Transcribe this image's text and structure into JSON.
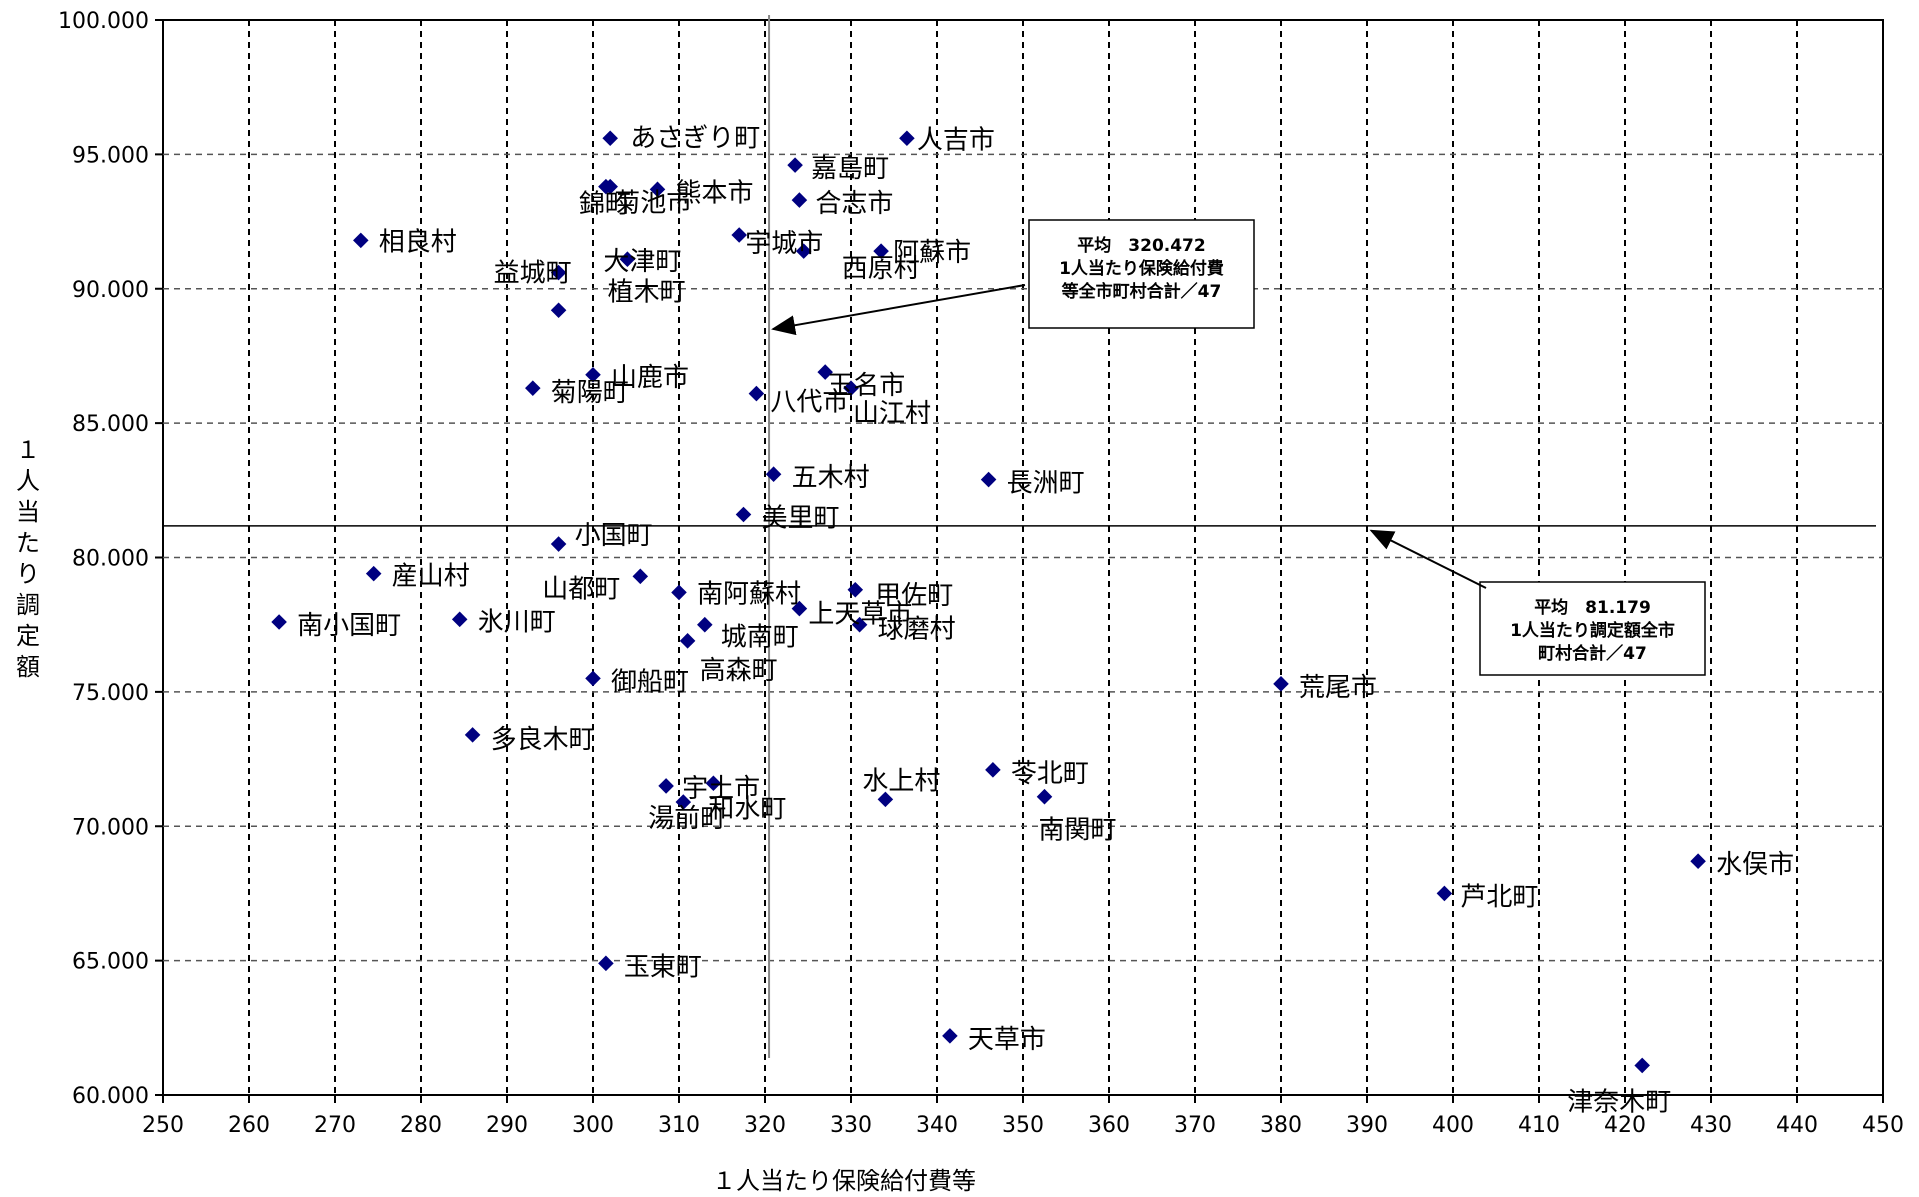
{
  "chart_data": {
    "type": "scatter",
    "xlabel": "１人当たり保険給付費等",
    "ylabel": "１人当たり調定額",
    "xlim": [
      250,
      450
    ],
    "ylim": [
      60,
      100
    ],
    "x_ticks": [
      250,
      260,
      270,
      280,
      290,
      300,
      310,
      320,
      330,
      340,
      350,
      360,
      370,
      380,
      390,
      400,
      410,
      420,
      430,
      440,
      450
    ],
    "y_ticks": [
      60,
      65,
      70,
      75,
      80,
      85,
      90,
      95,
      100
    ],
    "y_tick_labels": [
      "60.000",
      "65.000",
      "70.000",
      "75.000",
      "80.000",
      "85.000",
      "90.000",
      "95.000",
      "100.000"
    ],
    "grid": true,
    "marker_color": "#000080",
    "points": [
      {
        "label": "あさぎり町",
        "x": 302.0,
        "y": 95.6
      },
      {
        "label": "錦町",
        "x": 301.5,
        "y": 93.8
      },
      {
        "label": "菊池市",
        "x": 302.0,
        "y": 93.8
      },
      {
        "label": "人吉市",
        "x": 336.5,
        "y": 95.6
      },
      {
        "label": "嘉島町",
        "x": 323.5,
        "y": 94.6
      },
      {
        "label": "熊本市",
        "x": 307.5,
        "y": 93.7
      },
      {
        "label": "合志市",
        "x": 324.0,
        "y": 93.3
      },
      {
        "label": "相良村",
        "x": 273.0,
        "y": 91.8
      },
      {
        "label": "宇城市",
        "x": 317.0,
        "y": 92.0
      },
      {
        "label": "西原村",
        "x": 324.5,
        "y": 91.4
      },
      {
        "label": "阿蘇市",
        "x": 333.5,
        "y": 91.4
      },
      {
        "label": "益城町",
        "x": 296.0,
        "y": 90.6
      },
      {
        "label": "大津町",
        "x": 304.0,
        "y": 91.1
      },
      {
        "label": "植木町",
        "x": 296.0,
        "y": 89.2
      },
      {
        "label": "山鹿市",
        "x": 300.0,
        "y": 86.8
      },
      {
        "label": "菊陽町",
        "x": 293.0,
        "y": 86.3
      },
      {
        "label": "八代市",
        "x": 319.0,
        "y": 86.1
      },
      {
        "label": "玉名市",
        "x": 327.0,
        "y": 86.9
      },
      {
        "label": "山江村",
        "x": 330.0,
        "y": 86.3
      },
      {
        "label": "五木村",
        "x": 321.0,
        "y": 83.1
      },
      {
        "label": "長洲町",
        "x": 346.0,
        "y": 82.9
      },
      {
        "label": "美里町",
        "x": 317.5,
        "y": 81.6
      },
      {
        "label": "小国町",
        "x": 296.0,
        "y": 80.5
      },
      {
        "label": "山都町",
        "x": 305.5,
        "y": 79.3
      },
      {
        "label": "産山村",
        "x": 274.5,
        "y": 79.4
      },
      {
        "label": "南小国町",
        "x": 263.5,
        "y": 77.6
      },
      {
        "label": "氷川町",
        "x": 284.5,
        "y": 77.7
      },
      {
        "label": "南阿蘇村",
        "x": 310.0,
        "y": 78.7
      },
      {
        "label": "甲佐町",
        "x": 330.5,
        "y": 78.8
      },
      {
        "label": "上天草市",
        "x": 324.0,
        "y": 78.1
      },
      {
        "label": "城南町",
        "x": 313.0,
        "y": 77.5
      },
      {
        "label": "球磨村",
        "x": 331.0,
        "y": 77.5
      },
      {
        "label": "高森町",
        "x": 311.0,
        "y": 76.9
      },
      {
        "label": "御船町",
        "x": 300.0,
        "y": 75.5
      },
      {
        "label": "荒尾市",
        "x": 380.0,
        "y": 75.3
      },
      {
        "label": "多良木町",
        "x": 286.0,
        "y": 73.4
      },
      {
        "label": "宇土市",
        "x": 308.5,
        "y": 71.5
      },
      {
        "label": "和水町",
        "x": 314.0,
        "y": 71.6
      },
      {
        "label": "湯前町",
        "x": 310.5,
        "y": 70.9
      },
      {
        "label": "水上村",
        "x": 334.0,
        "y": 71.0
      },
      {
        "label": "苓北町",
        "x": 346.5,
        "y": 72.1
      },
      {
        "label": "南関町",
        "x": 352.5,
        "y": 71.1
      },
      {
        "label": "水俣市",
        "x": 428.5,
        "y": 68.7
      },
      {
        "label": "芦北町",
        "x": 399.0,
        "y": 67.5
      },
      {
        "label": "玉東町",
        "x": 301.5,
        "y": 64.9
      },
      {
        "label": "天草市",
        "x": 341.5,
        "y": 62.2
      },
      {
        "label": "津奈木町",
        "x": 422.0,
        "y": 61.1
      }
    ],
    "reference_lines": [
      {
        "orientation": "vertical",
        "value": 320.472
      },
      {
        "orientation": "horizontal",
        "value": 81.179
      }
    ],
    "annotations": [
      {
        "lines": [
          "平均　320.472",
          "1人当たり保険給付費",
          "等全市町村合計／47"
        ],
        "points_to": [
          320.472,
          88.5
        ]
      },
      {
        "lines": [
          "平均　81.179",
          "1人当たり調定額全市",
          "町村合計／47"
        ],
        "points_to": [
          390.5,
          81.0
        ]
      }
    ]
  }
}
